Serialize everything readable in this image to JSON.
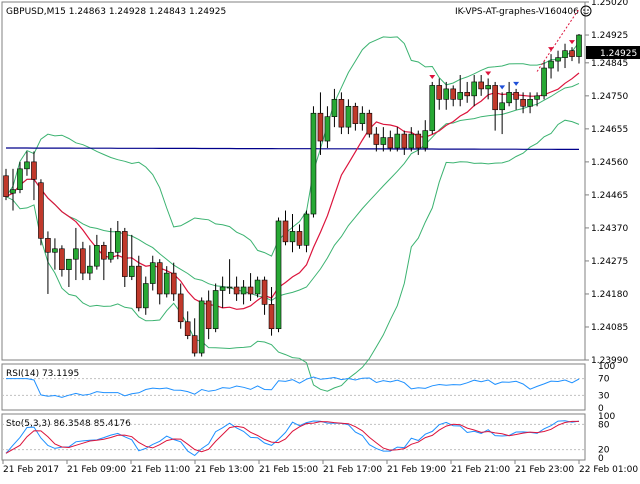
{
  "chart_header": {
    "symbol_text": "GBPUSD,M15  1.24863 1.24928 1.24843 1.24925",
    "expert_label": "IK-VPS-AT-graphes-V160406",
    "smiley_icon": "smiley-face-icon"
  },
  "price_axis": {
    "labels": [
      "1.25020",
      "1.24925",
      "1.24845",
      "1.24750",
      "1.24655",
      "1.24560",
      "1.24465",
      "1.24370",
      "1.24275",
      "1.24180",
      "1.24085",
      "1.23990"
    ],
    "current_price": "1.24925",
    "current_price_color": "#000000"
  },
  "rsi_panel": {
    "label": "RSI(14) 73.1195",
    "levels": [
      "100",
      "70",
      "30",
      "0"
    ],
    "line_color": "#1e90ff"
  },
  "stoch_panel": {
    "label": "Sto(5,3,3) 86.3548 85.4176",
    "levels": [
      "100",
      "80",
      "20",
      "0"
    ],
    "main_color": "#1e90ff",
    "signal_color": "#dc143c"
  },
  "time_axis": {
    "labels": [
      "21 Feb 2017",
      "21 Feb 09:00",
      "21 Feb 11:00",
      "21 Feb 13:00",
      "21 Feb 15:00",
      "21 Feb 17:00",
      "21 Feb 19:00",
      "21 Feb 21:00",
      "21 Feb 23:00",
      "22 Feb 01:00"
    ]
  },
  "colors": {
    "bull": "#27a834",
    "bear": "#c0392b",
    "bollinger": "#3cb371",
    "ma_slow": "#00008b",
    "ma_fast": "#dc143c",
    "level_line": "#c0c0c0"
  },
  "chart_data": {
    "type": "candlestick",
    "timeframe": "M15",
    "ylim": [
      1.2399,
      1.2502
    ],
    "candles": [
      [
        1.2452,
        1.2454,
        1.2445,
        1.2446
      ],
      [
        1.2447,
        1.2454,
        1.2442,
        1.2448
      ],
      [
        1.2448,
        1.2456,
        1.2447,
        1.2454
      ],
      [
        1.2454,
        1.2459,
        1.2452,
        1.2456
      ],
      [
        1.2456,
        1.2459,
        1.2445,
        1.2451
      ],
      [
        1.245,
        1.2451,
        1.2432,
        1.2434
      ],
      [
        1.2434,
        1.2436,
        1.2418,
        1.243
      ],
      [
        1.243,
        1.2434,
        1.2425,
        1.2431
      ],
      [
        1.2431,
        1.2432,
        1.2423,
        1.2425
      ],
      [
        1.2425,
        1.2427,
        1.242,
        1.2428
      ],
      [
        1.2428,
        1.2437,
        1.2422,
        1.2431
      ],
      [
        1.2431,
        1.2433,
        1.2422,
        1.2424
      ],
      [
        1.2424,
        1.2432,
        1.2422,
        1.2426
      ],
      [
        1.2426,
        1.2435,
        1.2425,
        1.2432
      ],
      [
        1.2432,
        1.2433,
        1.2422,
        1.2428
      ],
      [
        1.2428,
        1.2437,
        1.2427,
        1.243
      ],
      [
        1.243,
        1.2439,
        1.2428,
        1.2436
      ],
      [
        1.2436,
        1.2437,
        1.242,
        1.2423
      ],
      [
        1.2423,
        1.2435,
        1.2422,
        1.2426
      ],
      [
        1.2426,
        1.2429,
        1.2413,
        1.2414
      ],
      [
        1.2414,
        1.2423,
        1.2412,
        1.2421
      ],
      [
        1.2421,
        1.2429,
        1.2419,
        1.2427
      ],
      [
        1.2427,
        1.2428,
        1.2415,
        1.2418
      ],
      [
        1.2418,
        1.2426,
        1.2417,
        1.2424
      ],
      [
        1.2424,
        1.2427,
        1.2416,
        1.2418
      ],
      [
        1.2418,
        1.2421,
        1.2408,
        1.241
      ],
      [
        1.241,
        1.2413,
        1.2405,
        1.2406
      ],
      [
        1.2406,
        1.2411,
        1.24,
        1.2401
      ],
      [
        1.2401,
        1.2417,
        1.24,
        1.2416
      ],
      [
        1.2416,
        1.2419,
        1.2405,
        1.2408
      ],
      [
        1.2408,
        1.2421,
        1.2407,
        1.2419
      ],
      [
        1.2419,
        1.2423,
        1.2414,
        1.242
      ],
      [
        1.242,
        1.2428,
        1.2418,
        1.242
      ],
      [
        1.242,
        1.2423,
        1.2416,
        1.2418
      ],
      [
        1.2418,
        1.2422,
        1.2415,
        1.242
      ],
      [
        1.242,
        1.2424,
        1.2416,
        1.2418
      ],
      [
        1.2418,
        1.2423,
        1.2417,
        1.2422
      ],
      [
        1.2422,
        1.2423,
        1.2412,
        1.2415
      ],
      [
        1.2415,
        1.242,
        1.2406,
        1.2408
      ],
      [
        1.2408,
        1.244,
        1.2407,
        1.2439
      ],
      [
        1.2439,
        1.2442,
        1.2432,
        1.2433
      ],
      [
        1.2433,
        1.2441,
        1.243,
        1.2436
      ],
      [
        1.2436,
        1.2438,
        1.2431,
        1.2432
      ],
      [
        1.2432,
        1.2442,
        1.243,
        1.2441
      ],
      [
        1.2441,
        1.2472,
        1.244,
        1.247
      ],
      [
        1.247,
        1.2476,
        1.2458,
        1.2462
      ],
      [
        1.2462,
        1.2472,
        1.246,
        1.2469
      ],
      [
        1.2469,
        1.2477,
        1.2466,
        1.2474
      ],
      [
        1.2474,
        1.2476,
        1.2464,
        1.2466
      ],
      [
        1.2466,
        1.2474,
        1.2464,
        1.2472
      ],
      [
        1.2472,
        1.2473,
        1.2465,
        1.2467
      ],
      [
        1.2467,
        1.2472,
        1.2465,
        1.247
      ],
      [
        1.247,
        1.2471,
        1.2463,
        1.2464
      ],
      [
        1.2464,
        1.2466,
        1.2459,
        1.2461
      ],
      [
        1.2461,
        1.2466,
        1.2459,
        1.2463
      ],
      [
        1.2463,
        1.2465,
        1.2459,
        1.246
      ],
      [
        1.246,
        1.2466,
        1.2459,
        1.2464
      ],
      [
        1.2464,
        1.2465,
        1.2458,
        1.246
      ],
      [
        1.246,
        1.2466,
        1.2459,
        1.2464
      ],
      [
        1.2464,
        1.2465,
        1.2458,
        1.246
      ],
      [
        1.246,
        1.2468,
        1.2459,
        1.2465
      ],
      [
        1.2465,
        1.2479,
        1.2464,
        1.2478
      ],
      [
        1.2478,
        1.248,
        1.2471,
        1.2474
      ],
      [
        1.2474,
        1.2479,
        1.2471,
        1.2477
      ],
      [
        1.2477,
        1.2478,
        1.2472,
        1.2474
      ],
      [
        1.2474,
        1.2481,
        1.2472,
        1.2476
      ],
      [
        1.2476,
        1.2479,
        1.2473,
        1.2475
      ],
      [
        1.2475,
        1.2481,
        1.2472,
        1.2479
      ],
      [
        1.2479,
        1.2481,
        1.2475,
        1.2477
      ],
      [
        1.2477,
        1.248,
        1.2474,
        1.2478
      ],
      [
        1.2478,
        1.2479,
        1.2465,
        1.2471
      ],
      [
        1.2471,
        1.2476,
        1.2464,
        1.2473
      ],
      [
        1.2473,
        1.2479,
        1.2472,
        1.2476
      ],
      [
        1.2476,
        1.2477,
        1.2471,
        1.2474
      ],
      [
        1.2474,
        1.2476,
        1.247,
        1.2472
      ],
      [
        1.2472,
        1.2476,
        1.247,
        1.2474
      ],
      [
        1.2474,
        1.2476,
        1.2472,
        1.2475
      ],
      [
        1.2475,
        1.2485,
        1.2474,
        1.2483
      ],
      [
        1.2483,
        1.2487,
        1.248,
        1.2485
      ],
      [
        1.2485,
        1.2488,
        1.2482,
        1.2486
      ],
      [
        1.2486,
        1.249,
        1.2483,
        1.2488
      ],
      [
        1.2488,
        1.2489,
        1.2485,
        1.24863
      ],
      [
        1.24863,
        1.24928,
        1.24843,
        1.24925
      ]
    ]
  }
}
